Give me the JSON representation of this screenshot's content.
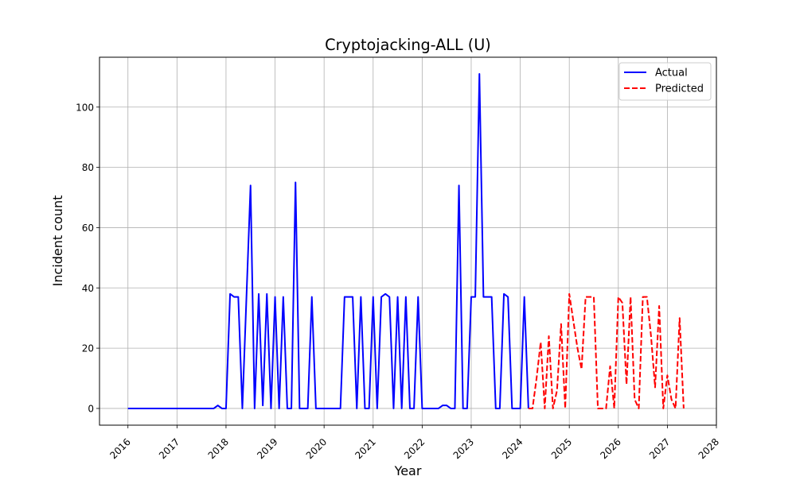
{
  "chart_data": {
    "type": "line",
    "title": "Cryptojacking-ALL (U)",
    "xlabel": "Year",
    "ylabel": "Incident count",
    "xlim": [
      2015.42,
      2028.0
    ],
    "ylim": [
      -5.55,
      116.55
    ],
    "x_ticks": [
      2016,
      2017,
      2018,
      2019,
      2020,
      2021,
      2022,
      2023,
      2024,
      2025,
      2026,
      2027,
      2028
    ],
    "x_tick_labels": [
      "2016",
      "2017",
      "2018",
      "2019",
      "2020",
      "2021",
      "2022",
      "2023",
      "2024",
      "2025",
      "2026",
      "2027",
      "2028"
    ],
    "y_ticks": [
      0,
      20,
      40,
      60,
      80,
      100
    ],
    "y_tick_labels": [
      "0",
      "20",
      "40",
      "60",
      "80",
      "100"
    ],
    "grid": true,
    "legend_position": "top-right",
    "series": [
      {
        "name": "Actual",
        "color": "#0000ff",
        "style": "solid",
        "points": [
          [
            2016.0,
            0
          ],
          [
            2017.75,
            0
          ],
          [
            2017.833,
            1
          ],
          [
            2017.917,
            0
          ],
          [
            2018.0,
            0
          ],
          [
            2018.083,
            38
          ],
          [
            2018.167,
            37
          ],
          [
            2018.25,
            37
          ],
          [
            2018.333,
            0
          ],
          [
            2018.417,
            37
          ],
          [
            2018.5,
            74
          ],
          [
            2018.583,
            0
          ],
          [
            2018.667,
            38
          ],
          [
            2018.75,
            1
          ],
          [
            2018.833,
            38
          ],
          [
            2018.917,
            0
          ],
          [
            2019.0,
            37
          ],
          [
            2019.083,
            0
          ],
          [
            2019.167,
            37
          ],
          [
            2019.25,
            0
          ],
          [
            2019.333,
            0
          ],
          [
            2019.417,
            75
          ],
          [
            2019.5,
            0
          ],
          [
            2019.583,
            0
          ],
          [
            2019.667,
            0
          ],
          [
            2019.75,
            37
          ],
          [
            2019.833,
            0
          ],
          [
            2019.917,
            0
          ],
          [
            2020.0,
            0
          ],
          [
            2020.083,
            0
          ],
          [
            2020.167,
            0
          ],
          [
            2020.25,
            0
          ],
          [
            2020.333,
            0
          ],
          [
            2020.417,
            37
          ],
          [
            2020.5,
            37
          ],
          [
            2020.583,
            37
          ],
          [
            2020.667,
            0
          ],
          [
            2020.75,
            37
          ],
          [
            2020.833,
            0
          ],
          [
            2020.917,
            0
          ],
          [
            2021.0,
            37
          ],
          [
            2021.083,
            0
          ],
          [
            2021.167,
            37
          ],
          [
            2021.25,
            38
          ],
          [
            2021.333,
            37
          ],
          [
            2021.417,
            0
          ],
          [
            2021.5,
            37
          ],
          [
            2021.583,
            0
          ],
          [
            2021.667,
            37
          ],
          [
            2021.75,
            0
          ],
          [
            2021.833,
            0
          ],
          [
            2021.917,
            37
          ],
          [
            2022.0,
            0
          ],
          [
            2022.083,
            0
          ],
          [
            2022.167,
            0
          ],
          [
            2022.25,
            0
          ],
          [
            2022.333,
            0
          ],
          [
            2022.417,
            1
          ],
          [
            2022.5,
            1
          ],
          [
            2022.583,
            0
          ],
          [
            2022.667,
            0
          ],
          [
            2022.75,
            74
          ],
          [
            2022.833,
            0
          ],
          [
            2022.917,
            0
          ],
          [
            2023.0,
            37
          ],
          [
            2023.083,
            37
          ],
          [
            2023.167,
            111
          ],
          [
            2023.25,
            37
          ],
          [
            2023.333,
            37
          ],
          [
            2023.417,
            37
          ],
          [
            2023.5,
            0
          ],
          [
            2023.583,
            0
          ],
          [
            2023.667,
            38
          ],
          [
            2023.75,
            37
          ],
          [
            2023.833,
            0
          ],
          [
            2023.917,
            0
          ],
          [
            2024.0,
            0
          ],
          [
            2024.083,
            37
          ],
          [
            2024.167,
            0
          ]
        ]
      },
      {
        "name": "Predicted",
        "color": "#ff0000",
        "style": "dashed",
        "points": [
          [
            2024.167,
            0
          ],
          [
            2024.25,
            0
          ],
          [
            2024.333,
            10
          ],
          [
            2024.417,
            22
          ],
          [
            2024.5,
            0
          ],
          [
            2024.583,
            24
          ],
          [
            2024.667,
            0
          ],
          [
            2024.75,
            6
          ],
          [
            2024.833,
            28
          ],
          [
            2024.917,
            0
          ],
          [
            2025.0,
            38
          ],
          [
            2025.083,
            29
          ],
          [
            2025.167,
            20
          ],
          [
            2025.25,
            13
          ],
          [
            2025.333,
            37
          ],
          [
            2025.417,
            37
          ],
          [
            2025.5,
            37
          ],
          [
            2025.583,
            0
          ],
          [
            2025.667,
            0
          ],
          [
            2025.75,
            0
          ],
          [
            2025.833,
            14
          ],
          [
            2025.917,
            0
          ],
          [
            2026.0,
            37
          ],
          [
            2026.083,
            35
          ],
          [
            2026.167,
            8
          ],
          [
            2026.25,
            37
          ],
          [
            2026.333,
            3
          ],
          [
            2026.417,
            0
          ],
          [
            2026.5,
            37
          ],
          [
            2026.583,
            37
          ],
          [
            2026.667,
            24
          ],
          [
            2026.75,
            7
          ],
          [
            2026.833,
            34
          ],
          [
            2026.917,
            0
          ],
          [
            2027.0,
            11
          ],
          [
            2027.083,
            3
          ],
          [
            2027.167,
            0
          ],
          [
            2027.25,
            30
          ],
          [
            2027.333,
            0
          ]
        ]
      }
    ]
  }
}
